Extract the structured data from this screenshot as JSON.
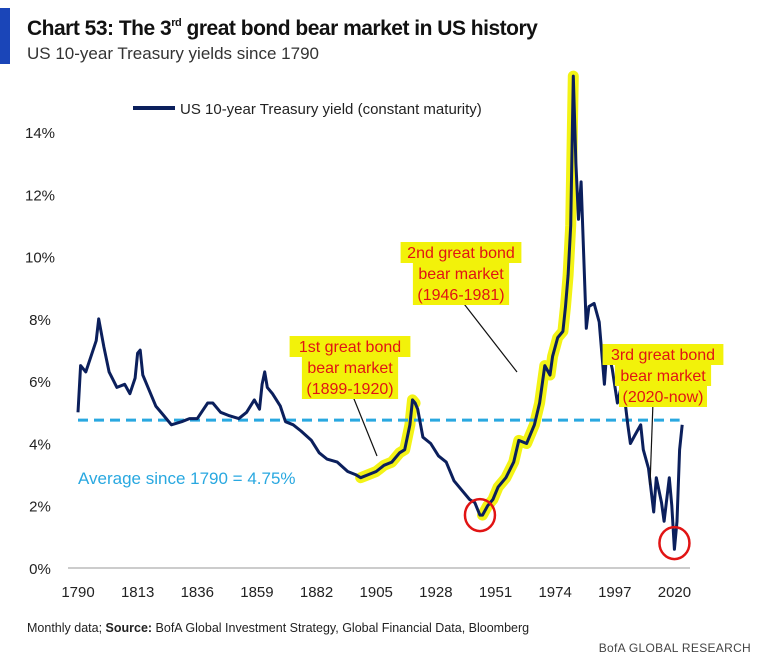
{
  "header": {
    "title_prefix": "Chart 53: The 3",
    "title_sup": "rd",
    "title_suffix": " great bond bear market in US history",
    "subtitle": "US 10-year Treasury yields since 1790"
  },
  "footer": {
    "prefix": "Monthly data; ",
    "source_label": "Source:",
    "source_text": " BofA Global Investment Strategy, Global Financial Data, Bloomberg",
    "brand": "BofA GLOBAL RESEARCH"
  },
  "colors": {
    "series": "#0b1f5c",
    "average": "#29a8e0",
    "highlight": "#f2f20a",
    "annotation": "#e11414",
    "accent": "#1a45b8"
  },
  "chart_data": {
    "type": "line",
    "ylim": [
      0,
      15
    ],
    "xlim": [
      1790,
      2026
    ],
    "yticks": [
      0,
      2,
      4,
      6,
      8,
      10,
      12,
      14
    ],
    "ytick_labels": [
      "0%",
      "2%",
      "4%",
      "6%",
      "8%",
      "10%",
      "12%",
      "14%"
    ],
    "xticks": [
      1790,
      1813,
      1836,
      1859,
      1882,
      1905,
      1928,
      1951,
      1974,
      1997,
      2020
    ],
    "legend": "top-left",
    "series": [
      {
        "name": "US 10-year Treasury yield (constant maturity)",
        "x": [
          1790,
          1791,
          1793,
          1795,
          1797,
          1798,
          1800,
          1802,
          1805,
          1808,
          1810,
          1812,
          1813,
          1814,
          1815,
          1817,
          1820,
          1823,
          1826,
          1830,
          1833,
          1836,
          1840,
          1842,
          1845,
          1848,
          1852,
          1855,
          1858,
          1860,
          1861,
          1862,
          1863,
          1865,
          1868,
          1870,
          1873,
          1876,
          1880,
          1883,
          1886,
          1890,
          1894,
          1897,
          1899,
          1902,
          1905,
          1908,
          1911,
          1914,
          1916,
          1918,
          1919,
          1920,
          1921,
          1923,
          1926,
          1929,
          1932,
          1935,
          1938,
          1941,
          1943,
          1945,
          1946,
          1948,
          1950,
          1952,
          1955,
          1958,
          1960,
          1963,
          1966,
          1968,
          1970,
          1972,
          1973,
          1975,
          1977,
          1978,
          1979,
          1980,
          1981,
          1982,
          1983,
          1984,
          1986,
          1987,
          1989,
          1991,
          1993,
          1994,
          1996,
          1998,
          2000,
          2002,
          2003,
          2005,
          2007,
          2008,
          2010,
          2012,
          2013,
          2015,
          2016,
          2018,
          2019,
          2020,
          2021,
          2022,
          2023
        ],
        "values": [
          5.0,
          6.5,
          6.3,
          6.8,
          7.3,
          8.0,
          7.1,
          6.3,
          5.8,
          5.9,
          5.6,
          6.1,
          6.9,
          7.0,
          6.2,
          5.8,
          5.2,
          4.9,
          4.6,
          4.7,
          4.8,
          4.8,
          5.3,
          5.3,
          5.0,
          4.9,
          4.8,
          5.0,
          5.4,
          5.1,
          5.9,
          6.3,
          5.8,
          5.6,
          5.2,
          4.7,
          4.6,
          4.4,
          4.1,
          3.7,
          3.5,
          3.4,
          3.1,
          3.0,
          2.9,
          3.0,
          3.1,
          3.3,
          3.4,
          3.7,
          3.8,
          4.6,
          5.4,
          5.3,
          5.1,
          4.2,
          4.0,
          3.6,
          3.4,
          2.8,
          2.5,
          2.2,
          2.1,
          1.7,
          1.7,
          2.0,
          2.2,
          2.6,
          2.9,
          3.4,
          4.1,
          4.0,
          4.6,
          5.3,
          6.5,
          6.2,
          6.8,
          7.4,
          7.6,
          8.4,
          9.4,
          11.0,
          15.8,
          13.0,
          11.2,
          12.4,
          7.7,
          8.4,
          8.5,
          7.9,
          5.9,
          7.1,
          6.4,
          5.3,
          6.0,
          4.6,
          4.0,
          4.3,
          4.6,
          3.8,
          3.2,
          1.8,
          2.9,
          2.1,
          1.5,
          2.9,
          2.0,
          0.6,
          1.5,
          3.8,
          4.6
        ]
      },
      {
        "name": "Average since 1790 = 4.75%",
        "values": [
          4.75
        ]
      }
    ],
    "annotations": [
      {
        "label": "1st great bond bear market (1899-1920)",
        "lines": [
          "1st great bond",
          "bear market",
          "(1899-1920)"
        ],
        "x": 1920,
        "y": 5.4,
        "range": [
          1899,
          1920
        ]
      },
      {
        "label": "2nd great bond bear market (1946-1981)",
        "lines": [
          "2nd great bond",
          "bear market",
          "(1946-1981)"
        ],
        "x": 1971,
        "y": 7.0,
        "range": [
          1946,
          1981
        ]
      },
      {
        "label": "3rd great bond bear market (2020-now)",
        "lines": [
          "3rd great bond",
          "bear market",
          "(2020-now)"
        ],
        "x": 2022,
        "y": 4.6,
        "range": [
          2020,
          2023
        ]
      }
    ]
  }
}
